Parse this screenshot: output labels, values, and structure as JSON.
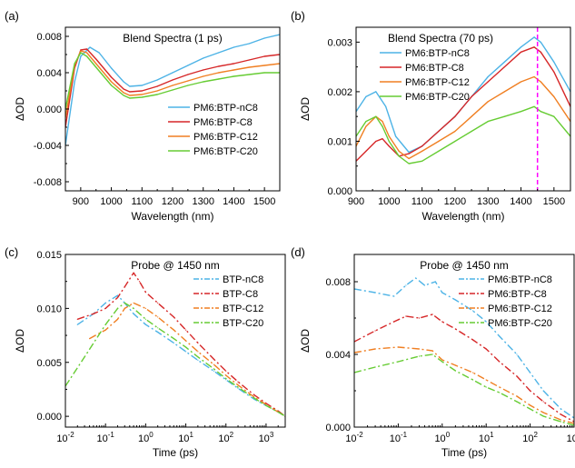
{
  "chart_data": [
    {
      "type": "line",
      "panel": "(a)",
      "title": "Blend Spectra (1 ps)",
      "xlabel": "Wavelength (nm)",
      "ylabel": "ΔOD",
      "xlim": [
        850,
        1550
      ],
      "ylim": [
        -0.009,
        0.009
      ],
      "xscale": "linear",
      "xticks": [
        900,
        1000,
        1100,
        1200,
        1300,
        1400,
        1500
      ],
      "yticks": [
        -0.008,
        -0.004,
        0.0,
        0.004,
        0.008
      ],
      "ytick_labels": [
        "-0.008",
        "-0.004",
        "0.000",
        "0.004",
        "0.008"
      ],
      "legend_position": "center-right",
      "series": [
        {
          "name": "PM6:BTP-nC8",
          "color": "#4db3e6",
          "dash": "",
          "x": [
            850,
            880,
            900,
            930,
            960,
            1000,
            1040,
            1060,
            1100,
            1150,
            1200,
            1250,
            1300,
            1350,
            1400,
            1450,
            1500,
            1550
          ],
          "y": [
            -0.004,
            0.003,
            0.0058,
            0.0068,
            0.0062,
            0.0045,
            0.003,
            0.0025,
            0.0026,
            0.0032,
            0.004,
            0.0048,
            0.0056,
            0.0062,
            0.0068,
            0.0072,
            0.0078,
            0.0082
          ]
        },
        {
          "name": "PM6:BTP-C8",
          "color": "#d62728",
          "dash": "",
          "x": [
            850,
            880,
            900,
            920,
            950,
            1000,
            1040,
            1060,
            1100,
            1150,
            1200,
            1250,
            1300,
            1350,
            1400,
            1450,
            1500,
            1550
          ],
          "y": [
            -0.002,
            0.0045,
            0.0065,
            0.0066,
            0.0055,
            0.0035,
            0.0022,
            0.0019,
            0.002,
            0.0025,
            0.0032,
            0.0038,
            0.0043,
            0.0047,
            0.005,
            0.0054,
            0.0058,
            0.006
          ]
        },
        {
          "name": "PM6:BTP-C12",
          "color": "#f07f22",
          "dash": "",
          "x": [
            850,
            880,
            900,
            920,
            950,
            1000,
            1040,
            1060,
            1100,
            1150,
            1200,
            1250,
            1300,
            1350,
            1400,
            1450,
            1500,
            1550
          ],
          "y": [
            -0.001,
            0.0048,
            0.0064,
            0.0062,
            0.005,
            0.003,
            0.0018,
            0.0015,
            0.0016,
            0.002,
            0.0026,
            0.0031,
            0.0036,
            0.004,
            0.0043,
            0.0046,
            0.0048,
            0.005
          ]
        },
        {
          "name": "PM6:BTP-C20",
          "color": "#66cc33",
          "dash": "",
          "x": [
            850,
            880,
            900,
            920,
            950,
            1000,
            1040,
            1060,
            1100,
            1150,
            1200,
            1250,
            1300,
            1350,
            1400,
            1450,
            1500,
            1550
          ],
          "y": [
            0.0,
            0.005,
            0.0062,
            0.0058,
            0.0046,
            0.0026,
            0.0015,
            0.0012,
            0.0013,
            0.0016,
            0.0021,
            0.0026,
            0.003,
            0.0033,
            0.0036,
            0.0038,
            0.004,
            0.004
          ]
        }
      ]
    },
    {
      "type": "line",
      "panel": "(b)",
      "title": "Blend Spectra (70 ps)",
      "xlabel": "Wavelength (nm)",
      "ylabel": "ΔOD",
      "xlim": [
        900,
        1550
      ],
      "ylim": [
        0.0,
        0.0033
      ],
      "xscale": "linear",
      "xticks": [
        900,
        1000,
        1100,
        1200,
        1300,
        1400,
        1500
      ],
      "yticks": [
        0.0,
        0.001,
        0.002,
        0.003
      ],
      "ytick_labels": [
        "0.000",
        "0.001",
        "0.002",
        "0.003"
      ],
      "legend_position": "upper-left",
      "vline": {
        "x": 1450,
        "color": "#ff00ff"
      },
      "series": [
        {
          "name": "PM6:BTP-nC8",
          "color": "#4db3e6",
          "dash": "",
          "x": [
            900,
            930,
            960,
            990,
            1020,
            1060,
            1100,
            1150,
            1200,
            1250,
            1300,
            1350,
            1400,
            1440,
            1460,
            1500,
            1550
          ],
          "y": [
            0.0016,
            0.0019,
            0.002,
            0.0017,
            0.0011,
            0.00078,
            0.0009,
            0.0012,
            0.0015,
            0.0019,
            0.0023,
            0.0026,
            0.0029,
            0.0031,
            0.003,
            0.0026,
            0.002
          ]
        },
        {
          "name": "PM6:BTP-C8",
          "color": "#d62728",
          "dash": "",
          "x": [
            900,
            930,
            960,
            980,
            1000,
            1030,
            1060,
            1100,
            1150,
            1200,
            1250,
            1300,
            1350,
            1400,
            1440,
            1460,
            1500,
            1550
          ],
          "y": [
            0.0006,
            0.0008,
            0.001,
            0.00105,
            0.0009,
            0.0007,
            0.00075,
            0.0009,
            0.0012,
            0.0015,
            0.0019,
            0.0022,
            0.0025,
            0.0028,
            0.0029,
            0.0028,
            0.0024,
            0.0017
          ]
        },
        {
          "name": "PM6:BTP-C12",
          "color": "#f07f22",
          "dash": "",
          "x": [
            900,
            930,
            960,
            980,
            1000,
            1030,
            1060,
            1100,
            1150,
            1200,
            1250,
            1300,
            1350,
            1400,
            1440,
            1460,
            1500,
            1550
          ],
          "y": [
            0.0009,
            0.0013,
            0.0015,
            0.0014,
            0.0011,
            0.0008,
            0.00065,
            0.0008,
            0.001,
            0.0012,
            0.0015,
            0.0018,
            0.002,
            0.0022,
            0.0023,
            0.0022,
            0.0019,
            0.0014
          ]
        },
        {
          "name": "PM6:BTP-C20",
          "color": "#66cc33",
          "dash": "",
          "x": [
            900,
            930,
            960,
            980,
            1000,
            1030,
            1060,
            1100,
            1150,
            1200,
            1250,
            1300,
            1350,
            1400,
            1440,
            1460,
            1500,
            1550
          ],
          "y": [
            0.0011,
            0.0014,
            0.0015,
            0.0013,
            0.001,
            0.0007,
            0.00055,
            0.0006,
            0.0008,
            0.001,
            0.0012,
            0.0014,
            0.0015,
            0.0016,
            0.0017,
            0.0016,
            0.0015,
            0.0011
          ]
        }
      ]
    },
    {
      "type": "line",
      "panel": "(c)",
      "title": "Probe @ 1450 nm",
      "xlabel": "Time (ps)",
      "ylabel": "ΔOD",
      "xlim": [
        0.01,
        3000
      ],
      "ylim": [
        -0.001,
        0.015
      ],
      "xscale": "log",
      "xticks": [
        0.01,
        0.1,
        1,
        10,
        100,
        1000
      ],
      "xtick_labels": [
        "10-2",
        "10-1",
        "100",
        "101",
        "102",
        "103"
      ],
      "yticks": [
        0.0,
        0.005,
        0.01,
        0.015
      ],
      "ytick_labels": [
        "0.000",
        "0.005",
        "0.010",
        "0.015"
      ],
      "legend_position": "upper-right",
      "series": [
        {
          "name": "BTP-nC8",
          "color": "#4db3e6",
          "dash": "8,3,2,3",
          "x": [
            0.02,
            0.05,
            0.1,
            0.2,
            0.3,
            0.5,
            1,
            2,
            5,
            10,
            20,
            50,
            100,
            200,
            500,
            1000,
            2000,
            3000
          ],
          "y": [
            0.0085,
            0.0095,
            0.0105,
            0.0112,
            0.0105,
            0.0095,
            0.0085,
            0.0078,
            0.0068,
            0.006,
            0.0052,
            0.0042,
            0.0034,
            0.0026,
            0.0016,
            0.001,
            0.0004,
            0.0
          ]
        },
        {
          "name": "BTP-C8",
          "color": "#d62728",
          "dash": "8,3,2,3",
          "x": [
            0.02,
            0.05,
            0.1,
            0.2,
            0.3,
            0.5,
            0.7,
            1,
            2,
            5,
            10,
            20,
            50,
            100,
            200,
            500,
            1000,
            2000,
            3000
          ],
          "y": [
            0.009,
            0.0095,
            0.01,
            0.011,
            0.012,
            0.0133,
            0.0125,
            0.0115,
            0.0105,
            0.0092,
            0.008,
            0.0068,
            0.0053,
            0.0042,
            0.0032,
            0.002,
            0.0012,
            0.0005,
            0.0
          ]
        },
        {
          "name": "BTP-C12",
          "color": "#f07f22",
          "dash": "8,3,2,3",
          "x": [
            0.04,
            0.1,
            0.2,
            0.3,
            0.5,
            1,
            2,
            5,
            10,
            20,
            50,
            100,
            200,
            500,
            1000,
            2000,
            3000
          ],
          "y": [
            0.0072,
            0.008,
            0.009,
            0.01,
            0.0105,
            0.01,
            0.0092,
            0.008,
            0.007,
            0.006,
            0.0048,
            0.0038,
            0.0029,
            0.0018,
            0.0011,
            0.0004,
            0.0
          ]
        },
        {
          "name": "BTP-C20",
          "color": "#66cc33",
          "dash": "8,3,2,3",
          "x": [
            0.01,
            0.03,
            0.1,
            0.2,
            0.3,
            0.5,
            1,
            2,
            5,
            10,
            20,
            50,
            100,
            200,
            500,
            1000,
            2000,
            3000
          ],
          "y": [
            0.0028,
            0.0055,
            0.0085,
            0.01,
            0.0105,
            0.01,
            0.009,
            0.0082,
            0.0072,
            0.0064,
            0.0055,
            0.0044,
            0.0035,
            0.0027,
            0.0017,
            0.001,
            0.0004,
            0.0
          ]
        }
      ]
    },
    {
      "type": "line",
      "panel": "(d)",
      "title": "Probe @ 1450 nm",
      "xlabel": "Time (ps)",
      "ylabel": "ΔOD",
      "xlim": [
        0.01,
        1000
      ],
      "ylim": [
        0.0,
        0.0095
      ],
      "xscale": "log",
      "xticks": [
        0.01,
        0.1,
        1,
        10,
        100,
        1000
      ],
      "xtick_labels": [
        "10-2",
        "10-1",
        "100",
        "101",
        "102",
        "103"
      ],
      "yticks": [
        0.0,
        0.004,
        0.008
      ],
      "ytick_labels": [
        "0.000",
        "0.004",
        "0.008"
      ],
      "legend_position": "upper-right",
      "series": [
        {
          "name": "PM6:BTP-nC8",
          "color": "#4db3e6",
          "dash": "8,3,2,3",
          "x": [
            0.01,
            0.03,
            0.08,
            0.15,
            0.25,
            0.4,
            0.7,
            1,
            2,
            5,
            10,
            20,
            50,
            100,
            200,
            500,
            1000
          ],
          "y": [
            0.0076,
            0.0074,
            0.0072,
            0.0078,
            0.0082,
            0.0078,
            0.008,
            0.0074,
            0.007,
            0.0064,
            0.0058,
            0.005,
            0.004,
            0.003,
            0.002,
            0.001,
            0.0005
          ]
        },
        {
          "name": "PM6:BTP-C8",
          "color": "#d62728",
          "dash": "8,3,2,3",
          "x": [
            0.01,
            0.03,
            0.08,
            0.15,
            0.3,
            0.6,
            1,
            2,
            5,
            10,
            20,
            50,
            100,
            200,
            500,
            1000
          ],
          "y": [
            0.0047,
            0.0053,
            0.0058,
            0.0061,
            0.006,
            0.0062,
            0.0058,
            0.0054,
            0.0048,
            0.0043,
            0.0036,
            0.0028,
            0.002,
            0.0014,
            0.0007,
            0.0003
          ]
        },
        {
          "name": "PM6:BTP-C12",
          "color": "#f07f22",
          "dash": "8,3,2,3",
          "x": [
            0.01,
            0.03,
            0.1,
            0.3,
            0.6,
            1,
            2,
            5,
            10,
            20,
            50,
            100,
            200,
            500,
            1000
          ],
          "y": [
            0.0041,
            0.0043,
            0.0044,
            0.0043,
            0.0042,
            0.0037,
            0.0034,
            0.003,
            0.0026,
            0.0022,
            0.0017,
            0.0012,
            0.0008,
            0.0004,
            0.0002
          ]
        },
        {
          "name": "PM6:BTP-C20",
          "color": "#66cc33",
          "dash": "8,3,2,3",
          "x": [
            0.01,
            0.03,
            0.1,
            0.3,
            0.6,
            1,
            2,
            5,
            10,
            20,
            50,
            100,
            200,
            500,
            1000
          ],
          "y": [
            0.003,
            0.0033,
            0.0036,
            0.0039,
            0.004,
            0.0036,
            0.0031,
            0.0026,
            0.0022,
            0.0019,
            0.0014,
            0.001,
            0.0006,
            0.0003,
            0.0001
          ]
        }
      ]
    }
  ]
}
